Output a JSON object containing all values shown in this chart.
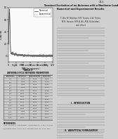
{
  "background": "#e8e8e8",
  "left_bg": "#f0f0f0",
  "plot_bg": "#f5f5f5",
  "text_color": "#111111",
  "gray_text": "#555555",
  "legend_labels": [
    "Numerical",
    "Experimental"
  ],
  "xlabel": "TIME (in nanosec)",
  "ylabel": "LOAD (A)",
  "xlim": [
    0,
    120
  ],
  "ylim": [
    -10,
    80
  ],
  "yticks": [
    0,
    20,
    40,
    60,
    80
  ],
  "xticks": [
    0,
    20,
    40,
    60,
    80,
    100,
    120
  ],
  "fig_caption": "Fig. 1.   RMS current due to switching.",
  "table_title": "TABLE II",
  "table_subtitle": "ANTENNA DIPOLE NETWORK PARAMETERS",
  "table_col_headers": [
    "Parameter",
    "Numerical",
    "Experimental",
    "Measured"
  ],
  "table_rows": [
    [
      "R_1",
      "1.281",
      "1.246",
      "1.268"
    ],
    [
      "R_2",
      "1.156",
      "1.122",
      "1.148"
    ],
    [
      "R_3",
      "1.189",
      "1.153",
      "1.183"
    ],
    [
      "R_4",
      "1.444",
      "1.408",
      "1.440"
    ],
    [
      "R_5",
      "0.250",
      "0.212",
      "0.248"
    ],
    [
      "R_6",
      "0.431",
      "0.378",
      "0.421"
    ],
    [
      "R_7",
      "0.337",
      "0.337",
      "0.337"
    ],
    [
      "R_8",
      "0.640",
      "0.640",
      "0.640"
    ],
    [
      "R_9",
      "4.460",
      "4.460",
      "4.460"
    ],
    [
      "R_10",
      "0.400",
      "4.460",
      "0.640"
    ],
    [
      "R_11",
      "0.400",
      "0.400",
      "0.400"
    ],
    [
      "R_12",
      "1.289",
      "1.289",
      "1.289"
    ],
    [
      "R_13",
      "1.461",
      "1.289",
      "1.289"
    ],
    [
      "R_14",
      "4.461",
      "4.461",
      "4.461"
    ]
  ],
  "right_title": "Transient Excitation of an Antenna with a Nonlinear Load\nNumerical and Experimental Results",
  "right_authors": "T. Wu, M. Mokhtar, F.M. Tesche, G.A. Thiele,\nM.H. Hassan, M.R.A. Ali, M.A. Kolbehdari,\nand others",
  "page_number": "213"
}
